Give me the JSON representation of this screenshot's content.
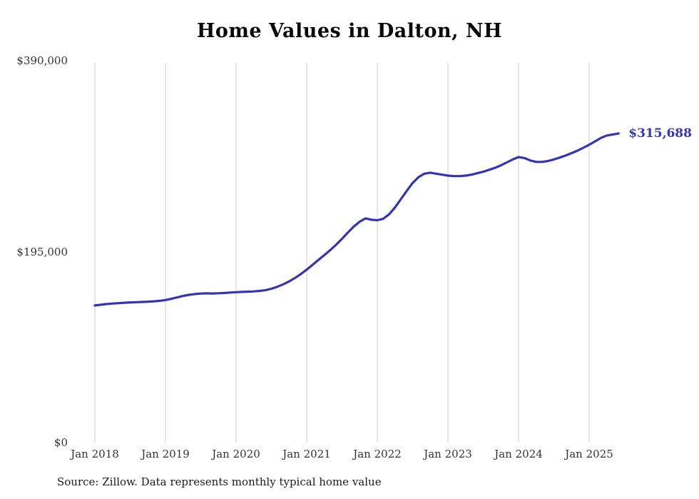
{
  "chart_data": {
    "type": "line",
    "title": "Home Values in Dalton, NH",
    "source": "Source: Zillow. Data represents monthly typical home value",
    "end_label": "$315,688",
    "end_value": 315688,
    "line_color": "#3434b4",
    "grid_color": "#cccccc",
    "grid": "vertical-only",
    "legend": "none",
    "ylim": [
      0,
      390000
    ],
    "y_tick_values": [
      0,
      195000,
      390000
    ],
    "y_tick_labels": [
      "$0",
      "$195,000",
      "$390,000"
    ],
    "x_tick_labels": [
      "Jan 2018",
      "Jan 2019",
      "Jan 2020",
      "Jan 2021",
      "Jan 2022",
      "Jan 2023",
      "Jan 2024",
      "Jan 2025"
    ],
    "series": [
      {
        "name": "Monthly typical home value",
        "start_month": "2018-01",
        "end_month": "2025-06",
        "values": [
          140000,
          140800,
          141500,
          142000,
          142400,
          142800,
          143200,
          143400,
          143600,
          143900,
          144300,
          144800,
          145600,
          146900,
          148300,
          149800,
          150900,
          151700,
          152200,
          152400,
          152300,
          152500,
          152800,
          153200,
          153600,
          153900,
          154100,
          154400,
          154900,
          155700,
          157100,
          159100,
          161600,
          164600,
          168100,
          172100,
          176600,
          181600,
          186600,
          191600,
          196600,
          202100,
          208100,
          214600,
          220600,
          225600,
          229000,
          227600,
          227100,
          228600,
          233100,
          240100,
          248600,
          257100,
          265100,
          271100,
          274600,
          275600,
          274600,
          273600,
          272600,
          272100,
          272100,
          272600,
          273600,
          275100,
          276600,
          278600,
          280600,
          283100,
          286100,
          289100,
          291600,
          290600,
          288100,
          286600,
          286600,
          287600,
          289100,
          291100,
          293100,
          295600,
          298100,
          301100,
          304100,
          307600,
          311100,
          313600,
          314600,
          315688
        ]
      }
    ]
  }
}
